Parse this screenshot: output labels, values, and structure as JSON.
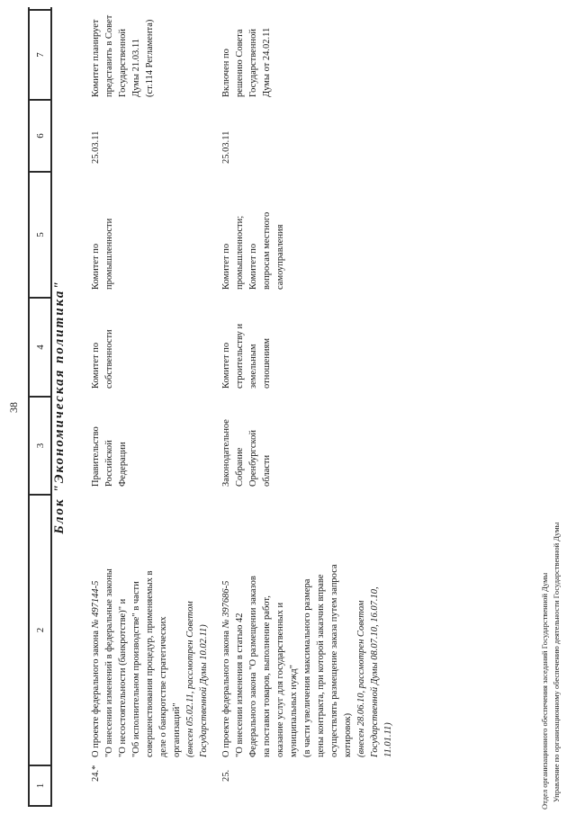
{
  "page": {
    "number": "38",
    "section_title": "Блок \"Экономическая политика\"",
    "footer": {
      "line1": "Отдел организационного обеспечения заседаний Государственной Думы",
      "line2": "Управление по организационному обеспечению деятельности Государственной Думы"
    }
  },
  "table": {
    "column_numbers": [
      "1",
      "2",
      "3",
      "4",
      "5",
      "6",
      "7"
    ],
    "rows": [
      {
        "num": "24.*",
        "col2_intro": "О проекте федерального закона ",
        "col2_number": "№ 497144-5",
        "col2_rest": "\n\"О внесении изменений в федеральные законы\n\"О несостоятельности (банкротстве)\" и\n\"Об исполнительном производстве\" в части\nсовершенствования процедур, применяемых в\nделе о банкротстве стратегических\nорганизаций\"",
        "col2_note": "(внесен 05.02.11, рассмотрен Советом\nГосударственной Думы 10.02.11)",
        "col3": "Правительство\nРоссийской\nФедерации",
        "col4": "Комитет по\nсобственности",
        "col5": "Комитет по\nпромышленности",
        "col6": "25.03.11",
        "col7": "Комитет планирует\nпредставить в Совет\nГосударственной\nДумы 21.03.11\n(ст.114 Регламента)"
      },
      {
        "num": "25.",
        "col2_intro": "О проекте федерального закона ",
        "col2_number": "№ 397686-5",
        "col2_rest": "\n\"О внесении изменения в статью 42\nФедерального закона \"О размещении заказов\nна поставки товаров, выполнение работ,\nоказание услуг для государственных и\nмуниципальных нужд\"\n(в части увеличения максимального размера\nцены контракта, при которой заказчик вправе\nосуществлять размещение заказа путем запроса\nкотировок)",
        "col2_note": "(внесен 28.06.10, рассмотрен Советом\nГосударственной Думы 08.07.10, 16.07.10,\n11.01.11)",
        "col3": "Законодательное\nСобрание\nОренбургской\nобласти",
        "col4": "Комитет по\nстроительству и\nземельным\nотношениям",
        "col5": "Комитет по\nпромышленности;\nКомитет по\nвопросам местного\nсамоуправления",
        "col6": "25.03.11",
        "col7": "Включен по\nрешению Совета\nГосударственной\nДумы от 24.02.11"
      }
    ]
  }
}
